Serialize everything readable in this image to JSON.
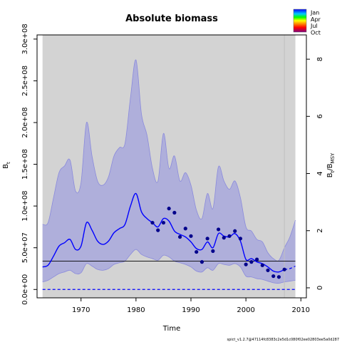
{
  "chart_data": {
    "type": "line",
    "title": "Absolute biomass",
    "xlabel": "Time",
    "ylabel": "B",
    "ylabel_sub": "t",
    "y2label": "B",
    "y2label_sub": "t",
    "y2label_sep": "/B",
    "y2label_sub2": "MSY",
    "xlim": [
      1962,
      2011
    ],
    "ylim": [
      -10000000,
      305000000
    ],
    "y2lim": [
      -0.35,
      8.85
    ],
    "y2_scale": 34000000,
    "x_ticks": [
      1970,
      1980,
      1990,
      2000,
      2010
    ],
    "x_tick_labels": [
      "1970",
      "1980",
      "1990",
      "2000",
      "2010"
    ],
    "y_ticks": [
      0,
      50000000,
      100000000,
      150000000,
      200000000,
      250000000,
      300000000
    ],
    "y_tick_labels": [
      "0.0e+00",
      "5.0e+07",
      "1.0e+08",
      "1.5e+08",
      "2.0e+08",
      "2.5e+08",
      "3.0e+08"
    ],
    "y2_ticks": [
      0,
      2,
      4,
      6,
      8
    ],
    "y2_tick_labels": [
      "0",
      "2",
      "4",
      "6",
      "8"
    ],
    "shaded_region_x": [
      1963,
      2009
    ],
    "forecast_start_x": 2007,
    "bmsy_line_y": 34000000,
    "zero_line_y": 0,
    "series": [
      {
        "role": "estimate",
        "x": [
          1963,
          1964,
          1965,
          1966,
          1967,
          1968,
          1969,
          1970,
          1971,
          1972,
          1973,
          1974,
          1975,
          1976,
          1977,
          1978,
          1979,
          1980,
          1981,
          1982,
          1983,
          1984,
          1985,
          1986,
          1987,
          1988,
          1989,
          1990,
          1991,
          1992,
          1993,
          1994,
          1995,
          1996,
          1997,
          1998,
          1999,
          2000,
          2001,
          2002,
          2003,
          2004,
          2005,
          2006,
          2007
        ],
        "y": [
          27000000,
          29000000,
          40000000,
          52000000,
          56000000,
          60000000,
          48000000,
          52000000,
          80000000,
          71000000,
          58000000,
          54000000,
          58000000,
          68000000,
          73000000,
          78000000,
          100000000,
          115000000,
          93000000,
          85000000,
          80000000,
          75000000,
          85000000,
          82000000,
          70000000,
          66000000,
          63000000,
          57000000,
          49000000,
          48000000,
          57000000,
          50000000,
          67000000,
          64000000,
          63000000,
          67000000,
          58000000,
          36000000,
          37000000,
          33000000,
          31000000,
          27000000,
          22000000,
          21000000,
          24000000
        ]
      },
      {
        "role": "forecast",
        "x": [
          2007,
          2008,
          2009
        ],
        "y": [
          24000000,
          25000000,
          28000000
        ]
      },
      {
        "role": "upper_ci",
        "x": [
          1963,
          1964,
          1965,
          1966,
          1967,
          1968,
          1969,
          1970,
          1971,
          1972,
          1973,
          1974,
          1975,
          1976,
          1977,
          1978,
          1979,
          1980,
          1981,
          1982,
          1983,
          1984,
          1985,
          1986,
          1987,
          1988,
          1989,
          1990,
          1991,
          1992,
          1993,
          1994,
          1995,
          1996,
          1997,
          1998,
          1999,
          2000,
          2001,
          2002,
          2003,
          2004,
          2005,
          2006,
          2007,
          2008,
          2009
        ],
        "y": [
          78000000,
          80000000,
          110000000,
          140000000,
          148000000,
          155000000,
          118000000,
          128000000,
          200000000,
          160000000,
          130000000,
          125000000,
          135000000,
          160000000,
          170000000,
          175000000,
          230000000,
          275000000,
          210000000,
          185000000,
          145000000,
          130000000,
          187000000,
          145000000,
          160000000,
          130000000,
          140000000,
          125000000,
          95000000,
          85000000,
          115000000,
          97000000,
          147000000,
          130000000,
          120000000,
          130000000,
          110000000,
          75000000,
          70000000,
          60000000,
          57000000,
          44000000,
          37000000,
          35000000,
          50000000,
          63000000,
          83000000
        ]
      },
      {
        "role": "lower_ci",
        "x": [
          1963,
          1964,
          1965,
          1966,
          1967,
          1968,
          1969,
          1970,
          1971,
          1972,
          1973,
          1974,
          1975,
          1976,
          1977,
          1978,
          1979,
          1980,
          1981,
          1982,
          1983,
          1984,
          1985,
          1986,
          1987,
          1988,
          1989,
          1990,
          1991,
          1992,
          1993,
          1994,
          1995,
          1996,
          1997,
          1998,
          1999,
          2000,
          2001,
          2002,
          2003,
          2004,
          2005,
          2006,
          2007,
          2008,
          2009
        ],
        "y": [
          9000000,
          11000000,
          15000000,
          19000000,
          21000000,
          23000000,
          19000000,
          20000000,
          31000000,
          28000000,
          24000000,
          23000000,
          25000000,
          30000000,
          32000000,
          34000000,
          42000000,
          48000000,
          42000000,
          39000000,
          37000000,
          35000000,
          41000000,
          39000000,
          34000000,
          32000000,
          30000000,
          27000000,
          22000000,
          21000000,
          26000000,
          23000000,
          31000000,
          30000000,
          29000000,
          31000000,
          27000000,
          16000000,
          15000000,
          13000000,
          12000000,
          10000000,
          8000000,
          7500000,
          9000000,
          10000000,
          11000000
        ]
      },
      {
        "role": "observations",
        "x": [
          1983,
          1984,
          1985,
          1986,
          1987,
          1988,
          1989,
          1990,
          1991,
          1992,
          1993,
          1994,
          1995,
          1996,
          1997,
          1998,
          1999,
          2000,
          2001,
          2002,
          2003,
          2004,
          2005,
          2006,
          2007
        ],
        "y": [
          80000000,
          71000000,
          80000000,
          97000000,
          92000000,
          63000000,
          73000000,
          64000000,
          45000000,
          33000000,
          61000000,
          46000000,
          72000000,
          62000000,
          64000000,
          70000000,
          61000000,
          30000000,
          33000000,
          36000000,
          29000000,
          23000000,
          16000000,
          15000000,
          24000000
        ]
      }
    ],
    "legend": {
      "placement": "top-right",
      "items": [
        "Jan",
        "Apr",
        "Jul",
        "Oct"
      ],
      "colors": [
        "#0000ff",
        "#00ff00",
        "#ff0000",
        "#800080"
      ]
    },
    "colors": {
      "panel_bg": "#d3d3d3",
      "ci_fill": "#a8a8dc",
      "ci_stroke": "#8a8adc",
      "estimate": "#0000ff",
      "observation": "#00008b",
      "bmsy_line": "#000000",
      "forecast_line": "#c0c0c0"
    }
  },
  "footer": {
    "version_text": "spict_v1.2.7@47114fc8383c2e5d1c080f02ee02803ee5a0d287"
  }
}
